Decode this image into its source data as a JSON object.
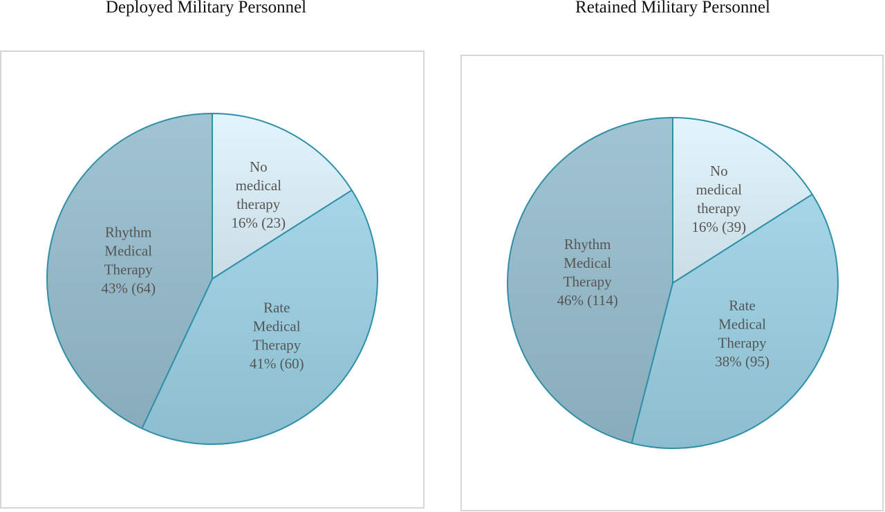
{
  "colors": {
    "no_therapy": "#d4e6ee",
    "rate_therapy": "#96c8da",
    "rhythm_therapy": "#93b6c5",
    "slice_edge": "#2f8ea8",
    "frame_border": "#d6d6d6",
    "label_text": "#555555"
  },
  "chart_data": [
    {
      "type": "pie",
      "title": "Deployed Military Personnel",
      "slices": [
        {
          "key": "no_therapy",
          "label_lines": [
            "No",
            "medical",
            "therapy",
            "16% (23)"
          ],
          "percent": 16,
          "count": 23
        },
        {
          "key": "rate_therapy",
          "label_lines": [
            "Rate",
            "Medical",
            "Therapy",
            "41% (60)"
          ],
          "percent": 41,
          "count": 60
        },
        {
          "key": "rhythm_therapy",
          "label_lines": [
            "Rhythm",
            "Medical",
            "Therapy",
            "43% (64)"
          ],
          "percent": 43,
          "count": 64
        }
      ]
    },
    {
      "type": "pie",
      "title": "Retained Military Personnel",
      "slices": [
        {
          "key": "no_therapy",
          "label_lines": [
            "No",
            "medical",
            "therapy",
            "16% (39)"
          ],
          "percent": 16,
          "count": 39
        },
        {
          "key": "rate_therapy",
          "label_lines": [
            "Rate",
            "Medical",
            "Therapy",
            "38% (95)"
          ],
          "percent": 38,
          "count": 95
        },
        {
          "key": "rhythm_therapy",
          "label_lines": [
            "Rhythm",
            "Medical",
            "Therapy",
            "46% (114)"
          ],
          "percent": 46,
          "count": 114
        }
      ]
    }
  ]
}
